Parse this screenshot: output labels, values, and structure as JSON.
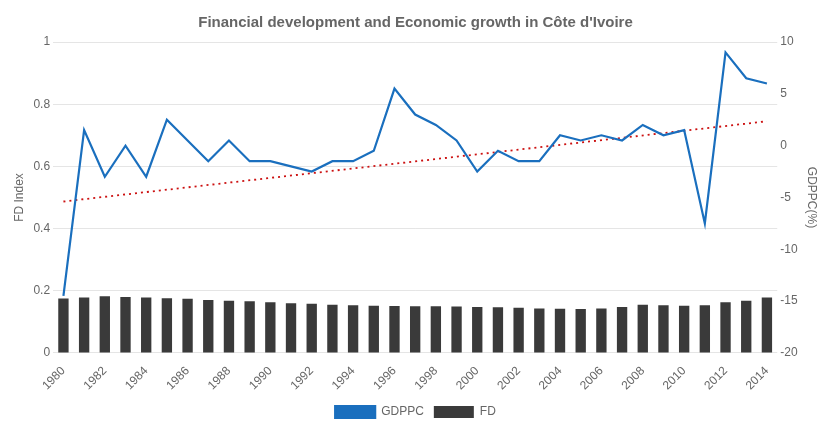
{
  "chart_data": {
    "type": "bar",
    "title": "Financial development and Economic growth in Côte d'Ivoire",
    "categories": [
      "1980",
      null,
      "1982",
      null,
      "1984",
      null,
      "1986",
      null,
      "1988",
      null,
      "1990",
      null,
      "1992",
      null,
      "1994",
      null,
      "1996",
      null,
      "1998",
      null,
      "2000",
      null,
      "2002",
      null,
      "2004",
      null,
      "2006",
      null,
      "2008",
      null,
      "2010",
      null,
      "2012",
      null,
      "2014"
    ],
    "series": [
      {
        "name": "FD",
        "type": "bar",
        "color": "#3a3a3a",
        "values": [
          0.175,
          0.178,
          0.182,
          0.18,
          0.178,
          0.176,
          0.174,
          0.17,
          0.168,
          0.166,
          0.163,
          0.16,
          0.158,
          0.155,
          0.153,
          0.152,
          0.151,
          0.15,
          0.15,
          0.149,
          0.148,
          0.147,
          0.145,
          0.143,
          0.142,
          0.141,
          0.143,
          0.148,
          0.155,
          0.153,
          0.152,
          0.153,
          0.163,
          0.168,
          0.178
        ]
      },
      {
        "name": "GDPPC",
        "type": "line",
        "color": "#1a6fbe",
        "axis": "y2",
        "values": [
          -14.5,
          1.5,
          -3.0,
          0.0,
          -3.0,
          2.5,
          0.5,
          -1.5,
          0.5,
          -1.5,
          -1.5,
          -2.0,
          -2.5,
          -1.5,
          -1.5,
          -0.5,
          5.5,
          3.0,
          2.0,
          0.5,
          -2.5,
          -0.5,
          -1.5,
          -1.5,
          1.0,
          0.5,
          1.0,
          0.5,
          2.0,
          1.0,
          1.5,
          -7.5,
          9.0,
          6.5,
          6.0
        ]
      },
      {
        "type": "line",
        "color": "#cc1111",
        "line_style": "dotted",
        "values": [
          0.487,
          null,
          null,
          null,
          null,
          null,
          null,
          null,
          null,
          null,
          null,
          null,
          null,
          null,
          null,
          null,
          null,
          null,
          null,
          null,
          null,
          null,
          null,
          null,
          null,
          null,
          null,
          null,
          null,
          null,
          null,
          null,
          null,
          null,
          0.745
        ]
      }
    ],
    "ylabel": "FD Index",
    "y2label": "GDPPC(%)",
    "ylim": [
      0,
      1
    ],
    "yticks": [
      0,
      0.2,
      0.4,
      0.6,
      0.8,
      1
    ],
    "y2lim": [
      -20,
      10
    ],
    "y2ticks": [
      -20,
      -15,
      -10,
      -5,
      0,
      5,
      10
    ],
    "grid": true,
    "legend": "bottom"
  }
}
